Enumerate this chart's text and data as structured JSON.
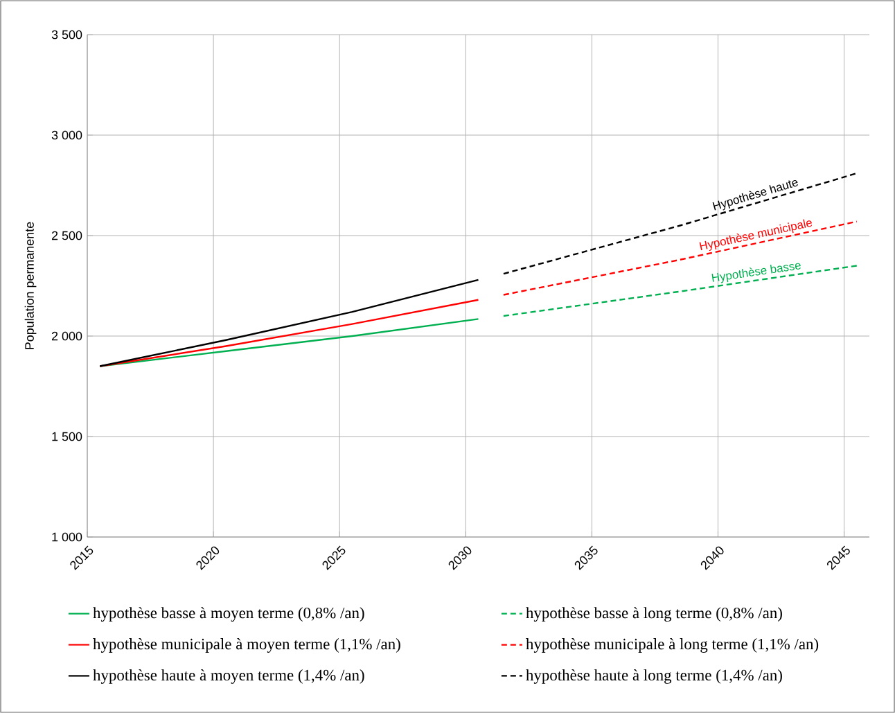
{
  "chart_data": {
    "type": "line",
    "ylabel": "Population permanente",
    "xlim": [
      2015,
      2046
    ],
    "xticks": [
      2015,
      2020,
      2025,
      2030,
      2035,
      2040,
      2045
    ],
    "ylim": [
      1000,
      3500
    ],
    "yticks": [
      {
        "value": 1000,
        "label": "1 000"
      },
      {
        "value": 1500,
        "label": "1 500"
      },
      {
        "value": 2000,
        "label": "2 000"
      },
      {
        "value": 2500,
        "label": "2 500"
      },
      {
        "value": 3000,
        "label": "3 000"
      },
      {
        "value": 3500,
        "label": "3 500"
      }
    ],
    "grid": true,
    "legend": "bottom",
    "series": [
      {
        "name": "hypothèse basse à moyen terme (0,8% /an)",
        "color": "#00b050",
        "line_style": "solid",
        "x": [
          2015.5,
          2020.5,
          2025.5,
          2030.5
        ],
        "values": [
          1850,
          1925,
          2000,
          2085
        ]
      },
      {
        "name": "hypothèse municipale à moyen terme (1,1% /an)",
        "color": "#ff0000",
        "line_style": "solid",
        "x": [
          2015.5,
          2020.5,
          2025.5,
          2030.5
        ],
        "values": [
          1850,
          1950,
          2060,
          2180
        ]
      },
      {
        "name": "hypothèse haute à moyen terme (1,4% /an)",
        "color": "#000000",
        "line_style": "solid",
        "x": [
          2015.5,
          2020.5,
          2025.5,
          2030.5
        ],
        "values": [
          1850,
          1980,
          2120,
          2280
        ]
      },
      {
        "name": "hypothèse basse à long terme (0,8% /an)",
        "color": "#00b050",
        "line_style": "dashed",
        "x": [
          2031.5,
          2038.5,
          2045.5
        ],
        "values": [
          2100,
          2222,
          2350
        ]
      },
      {
        "name": "hypothèse municipale à long terme  (1,1% /an)",
        "color": "#ff0000",
        "line_style": "dashed",
        "x": [
          2031.5,
          2038.5,
          2045.5
        ],
        "values": [
          2205,
          2380,
          2570
        ]
      },
      {
        "name": "hypothèse haute à long terme (1,4% /an)",
        "color": "#000000",
        "line_style": "dashed",
        "x": [
          2031.5,
          2038.5,
          2045.5
        ],
        "values": [
          2310,
          2550,
          2810
        ]
      }
    ],
    "annotations": [
      "Hypothèse basse",
      "Hypothèse municipale",
      "Hypothèse haute"
    ]
  }
}
